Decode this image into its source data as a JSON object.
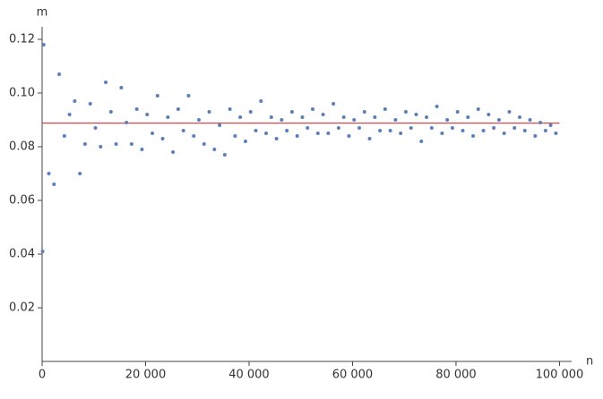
{
  "chart_data": {
    "type": "scatter",
    "x_label": "n",
    "y_label": "m",
    "xlim": [
      0,
      102000
    ],
    "ylim": [
      0,
      0.123
    ],
    "xticks": [
      0,
      {
        "value": 20000,
        "label": "20 000"
      },
      {
        "value": 40000,
        "label": "40 000"
      },
      {
        "value": 60000,
        "label": "60 000"
      },
      {
        "value": 80000,
        "label": "80 000"
      },
      {
        "value": 100000,
        "label": "100 000"
      }
    ],
    "yticks": [
      0.02,
      0.04,
      0.06,
      0.08,
      {
        "value": 0.1,
        "label": "0.10"
      },
      0.12
    ],
    "reference_line": {
      "value": 0.0888,
      "color": "#d9474b"
    },
    "series": [
      {
        "color": "#5b7fbd",
        "x": [
          100,
          300,
          1300,
          2300,
          3300,
          4300,
          5300,
          6300,
          7300,
          8300,
          9300,
          10300,
          11300,
          12300,
          13300,
          14300,
          15300,
          16300,
          17300,
          18300,
          19300,
          20300,
          21300,
          22300,
          23300,
          24300,
          25300,
          26300,
          27300,
          28300,
          29300,
          30300,
          31300,
          32300,
          33300,
          34300,
          35300,
          36300,
          37300,
          38300,
          39300,
          40300,
          41300,
          42300,
          43300,
          44300,
          45300,
          46300,
          47300,
          48300,
          49300,
          50300,
          51300,
          52300,
          53300,
          54300,
          55300,
          56300,
          57300,
          58300,
          59300,
          60300,
          61300,
          62300,
          63300,
          64300,
          65300,
          66300,
          67300,
          68300,
          69300,
          70300,
          71300,
          72300,
          73300,
          74300,
          75300,
          76300,
          77300,
          78300,
          79300,
          80300,
          81300,
          82300,
          83300,
          84300,
          85300,
          86300,
          87300,
          88300,
          89300,
          90300,
          91300,
          92300,
          93300,
          94300,
          95300,
          96300,
          97300,
          98300,
          99300
        ],
        "values": [
          0.041,
          0.118,
          0.07,
          0.066,
          0.107,
          0.084,
          0.092,
          0.097,
          0.07,
          0.081,
          0.096,
          0.087,
          0.08,
          0.104,
          0.093,
          0.081,
          0.102,
          0.089,
          0.081,
          0.094,
          0.079,
          0.092,
          0.085,
          0.099,
          0.083,
          0.091,
          0.078,
          0.094,
          0.086,
          0.099,
          0.084,
          0.09,
          0.081,
          0.093,
          0.079,
          0.088,
          0.077,
          0.094,
          0.084,
          0.091,
          0.082,
          0.093,
          0.086,
          0.097,
          0.085,
          0.091,
          0.083,
          0.09,
          0.086,
          0.093,
          0.084,
          0.091,
          0.087,
          0.094,
          0.085,
          0.092,
          0.085,
          0.096,
          0.087,
          0.091,
          0.084,
          0.09,
          0.087,
          0.093,
          0.083,
          0.091,
          0.086,
          0.094,
          0.086,
          0.09,
          0.085,
          0.093,
          0.087,
          0.092,
          0.082,
          0.091,
          0.087,
          0.095,
          0.085,
          0.09,
          0.087,
          0.093,
          0.086,
          0.091,
          0.084,
          0.094,
          0.086,
          0.092,
          0.087,
          0.09,
          0.085,
          0.093,
          0.087,
          0.091,
          0.086,
          0.09,
          0.084,
          0.089,
          0.086,
          0.088,
          0.085
        ]
      }
    ]
  }
}
